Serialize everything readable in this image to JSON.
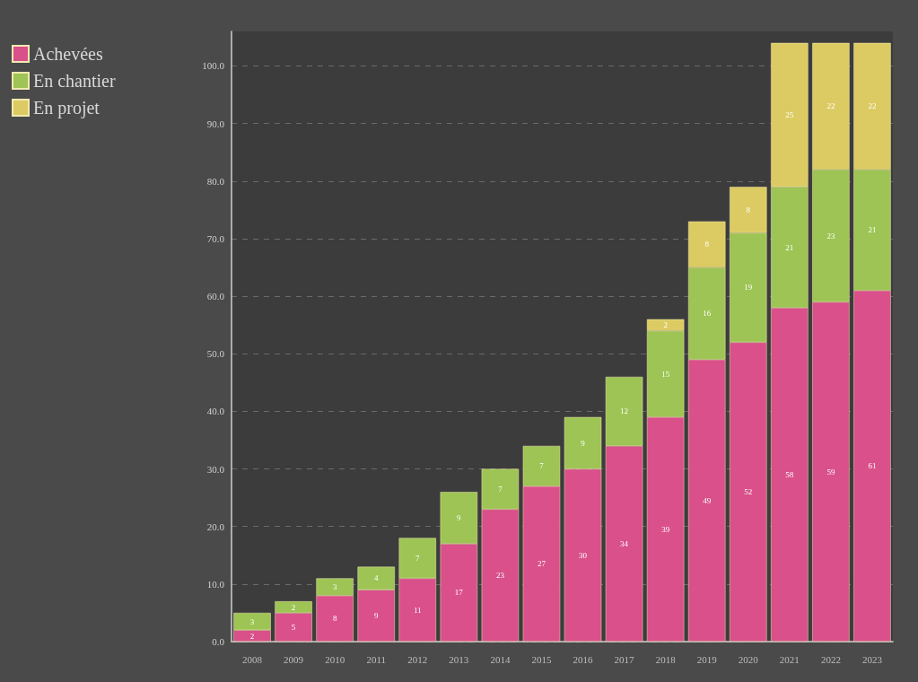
{
  "chart_data": {
    "type": "bar",
    "stacked": true,
    "data_labels": true,
    "grid": "y",
    "legend": "top left",
    "categories": [
      "2008",
      "2009",
      "2010",
      "2011",
      "2012",
      "2013",
      "2014",
      "2015",
      "2016",
      "2017",
      "2018",
      "2019",
      "2020",
      "2021",
      "2022",
      "2023"
    ],
    "ylim": [
      0,
      106
    ],
    "yticks": [
      {
        "value": 0,
        "label": "0.0"
      },
      {
        "value": 10,
        "label": "10.0"
      },
      {
        "value": 20,
        "label": "20.0"
      },
      {
        "value": 30,
        "label": "30.0"
      },
      {
        "value": 40,
        "label": "40.0"
      },
      {
        "value": 50,
        "label": "50.0"
      },
      {
        "value": 60,
        "label": "60.0"
      },
      {
        "value": 70,
        "label": "70.0"
      },
      {
        "value": 80,
        "label": "80.0"
      },
      {
        "value": 90,
        "label": "90.0"
      },
      {
        "value": 100,
        "label": "100.0"
      }
    ],
    "series": [
      {
        "name": "Achevées",
        "color": "#d9508a",
        "values": [
          2,
          5,
          8,
          9,
          11,
          17,
          23,
          27,
          30,
          34,
          39,
          49,
          52,
          58,
          59,
          61
        ]
      },
      {
        "name": "En chantier",
        "color": "#9dc454",
        "values": [
          3,
          2,
          3,
          4,
          7,
          9,
          7,
          7,
          9,
          12,
          15,
          16,
          19,
          21,
          23,
          21
        ]
      },
      {
        "name": "En projet",
        "color": "#dccb62",
        "values": [
          null,
          null,
          null,
          null,
          null,
          null,
          null,
          null,
          null,
          null,
          2,
          8,
          8,
          25,
          22,
          22
        ]
      }
    ]
  }
}
